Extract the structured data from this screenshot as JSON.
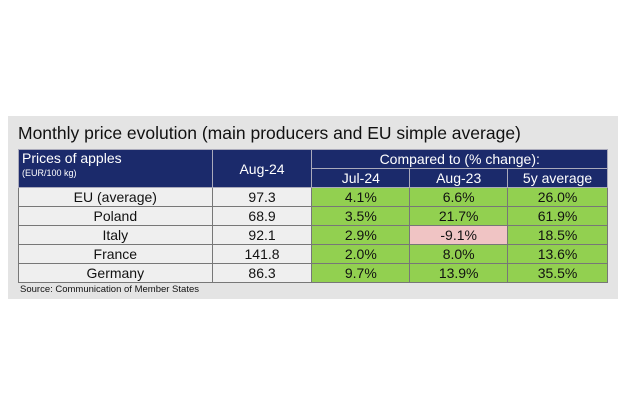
{
  "title": "Monthly price evolution (main producers and EU simple average)",
  "table": {
    "header": {
      "product": "Prices of apples",
      "unit": "(EUR/100 kg)",
      "current": "Aug-24",
      "compared": "Compared to (% change):",
      "cols": [
        "Jul-24",
        "Aug-23",
        "5y average"
      ]
    },
    "rows": [
      {
        "name": "EU (average)",
        "price": "97.3",
        "changes": [
          "4.1%",
          "6.6%",
          "26.0%"
        ]
      },
      {
        "name": "Poland",
        "price": "68.9",
        "changes": [
          "3.5%",
          "21.7%",
          "61.9%"
        ]
      },
      {
        "name": "Italy",
        "price": "92.1",
        "changes": [
          "2.9%",
          "-9.1%",
          "18.5%"
        ]
      },
      {
        "name": "France",
        "price": "141.8",
        "changes": [
          "2.0%",
          "8.0%",
          "13.6%"
        ]
      },
      {
        "name": "Germany",
        "price": "86.3",
        "changes": [
          "9.7%",
          "13.9%",
          "35.5%"
        ]
      }
    ]
  },
  "source": "Source: Communication of Member States",
  "colors": {
    "header": "#1b2a6b",
    "positive": "#92d050",
    "negative": "#f0c4c4"
  }
}
